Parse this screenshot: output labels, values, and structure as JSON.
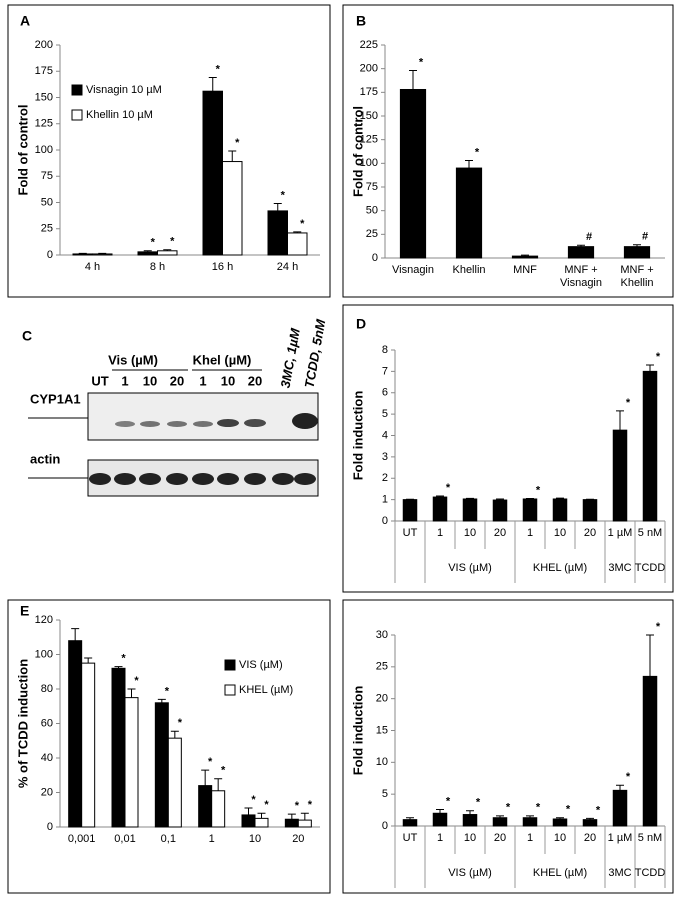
{
  "chart_data": [
    {
      "type": "bar",
      "panel_label": "A",
      "y_label": "Fold of control",
      "categories": [
        "4 h",
        "8 h",
        "16 h",
        "24 h"
      ],
      "legend": "upper left",
      "series": [
        {
          "name": "Visnagin 10 µM",
          "color": "#000000",
          "values": [
            1,
            3,
            156,
            42
          ],
          "errors": [
            0.5,
            1,
            13,
            7
          ],
          "significance": [
            null,
            "*",
            "*",
            "*"
          ]
        },
        {
          "name": "Khellin 10 µM",
          "color": "#ffffff",
          "values": [
            1,
            4,
            89,
            21
          ],
          "errors": [
            0.5,
            1,
            10,
            1
          ],
          "significance": [
            null,
            "*",
            "*",
            "*"
          ]
        }
      ],
      "ylim": [
        0,
        200
      ],
      "yticks": [
        0,
        25,
        50,
        75,
        100,
        125,
        150,
        175,
        200
      ]
    },
    {
      "type": "bar",
      "panel_label": "B",
      "y_label": "Fold of control",
      "categories": [
        "Visnagin",
        "Khellin",
        "MNF",
        "MNF + Visnagin",
        "MNF + Khellin"
      ],
      "series": [
        {
          "color": "#000000",
          "values": [
            178,
            95,
            2,
            12,
            12
          ],
          "errors": [
            20,
            8,
            1,
            1.5,
            2
          ],
          "significance": [
            "*",
            "*",
            null,
            "#",
            "#"
          ]
        }
      ],
      "ylim": [
        0,
        225
      ],
      "yticks": [
        0,
        25,
        50,
        75,
        100,
        125,
        150,
        175,
        200,
        225
      ]
    },
    {
      "type": "bar",
      "panel_label": "D",
      "y_label": "Fold induction",
      "categories": [
        "UT",
        "1",
        "10",
        "20",
        "1",
        "10",
        "20",
        "1 µM",
        "5 nM"
      ],
      "groups": [
        {
          "count": 1
        },
        {
          "name": "VIS (µM)",
          "count": 3
        },
        {
          "name": "KHEL (µM)",
          "count": 3
        },
        {
          "name": "3MC",
          "count": 1
        },
        {
          "name": "TCDD",
          "count": 1
        }
      ],
      "series": [
        {
          "color": "#000000",
          "values": [
            1,
            1.12,
            1.03,
            0.98,
            1.03,
            1.03,
            1.0,
            4.25,
            7.0
          ],
          "errors": [
            0.02,
            0.05,
            0.03,
            0.05,
            0.02,
            0.04,
            0.02,
            0.9,
            0.3
          ],
          "significance": [
            null,
            "*",
            null,
            null,
            "*",
            null,
            null,
            "*",
            "*"
          ]
        }
      ],
      "ylim": [
        0,
        8
      ],
      "yticks": [
        0,
        1,
        2,
        3,
        4,
        5,
        6,
        7,
        8
      ]
    },
    {
      "type": "bar",
      "panel_label": "E",
      "y_label": "% of TCDD induction",
      "categories": [
        "0,001",
        "0,01",
        "0,1",
        "1",
        "10",
        "20"
      ],
      "legend": "upper right",
      "series": [
        {
          "name": "VIS (µM)",
          "color": "#000000",
          "values": [
            108,
            92,
            72,
            24,
            7,
            4.5
          ],
          "errors": [
            7,
            1,
            2,
            9,
            4,
            3
          ],
          "significance": [
            null,
            "*",
            "*",
            "*",
            "*",
            "*"
          ]
        },
        {
          "name": "KHEL (µM)",
          "color": "#ffffff",
          "values": [
            95,
            75,
            51.5,
            21,
            5,
            4
          ],
          "errors": [
            3,
            5,
            4,
            7,
            3,
            4
          ],
          "significance": [
            null,
            "*",
            "*",
            "*",
            "*",
            "*"
          ]
        }
      ],
      "ylim": [
        0,
        120
      ],
      "yticks": [
        0,
        20,
        40,
        60,
        80,
        100,
        120
      ]
    },
    {
      "type": "bar",
      "y_label": "Fold induction",
      "categories": [
        "UT",
        "1",
        "10",
        "20",
        "1",
        "10",
        "20",
        "1 µM",
        "5 nM"
      ],
      "groups": [
        {
          "count": 1
        },
        {
          "name": "VIS (µM)",
          "count": 3
        },
        {
          "name": "KHEL (µM)",
          "count": 3
        },
        {
          "name": "3MC",
          "count": 1
        },
        {
          "name": "TCDD",
          "count": 1
        }
      ],
      "series": [
        {
          "color": "#000000",
          "values": [
            1,
            2,
            1.8,
            1.3,
            1.3,
            1.1,
            1,
            5.6,
            23.5
          ],
          "errors": [
            0.3,
            0.6,
            0.6,
            0.3,
            0.3,
            0.2,
            0.2,
            0.8,
            6.5
          ],
          "significance": [
            null,
            "*",
            "*",
            "*",
            "*",
            "*",
            "*",
            "*",
            "*"
          ]
        }
      ],
      "ylim": [
        0,
        30
      ],
      "yticks": [
        0,
        5,
        10,
        15,
        20,
        25,
        30
      ]
    }
  ],
  "blot": {
    "panel_label": "C",
    "groups": [
      "Vis (µM)",
      "Khel (µM)"
    ],
    "lanes": [
      "UT",
      "1",
      "10",
      "20",
      "1",
      "10",
      "20"
    ],
    "rotated_lanes": [
      "3MC, 1µM",
      "TCDD, 5nM"
    ],
    "rows": [
      "CYP1A1",
      "actin"
    ]
  }
}
